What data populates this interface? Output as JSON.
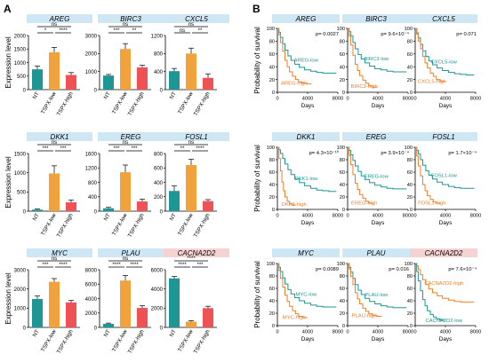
{
  "panels": {
    "A": {
      "letter": "A"
    },
    "B": {
      "letter": "B"
    }
  },
  "colors": {
    "nt": "#1e9696",
    "tspx_low": "#f2a23a",
    "tspx_high": "#ef5254",
    "title_bg": "#cfe7f5",
    "title_bg_alt": "#f6d3d3",
    "km_low": "#1e9696",
    "km_high": "#ef7f26"
  },
  "chart_data": [
    {
      "type": "bar",
      "title": "AREG",
      "ylabel": "Expression level",
      "categories": [
        "NT",
        "TSPX-low",
        "TSPX-high"
      ],
      "values": [
        750,
        1380,
        540
      ],
      "errors": [
        120,
        180,
        90
      ],
      "ylim": [
        0,
        2000
      ],
      "yticks": [
        0,
        500,
        1000,
        1500,
        2000
      ],
      "sig": [
        "*",
        "****",
        "ns"
      ]
    },
    {
      "type": "bar",
      "title": "BIRC3",
      "ylabel": "",
      "categories": [
        "NT",
        "TSPX-low",
        "TSPX-high"
      ],
      "values": [
        780,
        2250,
        1230
      ],
      "errors": [
        60,
        300,
        120
      ],
      "ylim": [
        0,
        3000
      ],
      "yticks": [
        0,
        1000,
        2000,
        3000
      ],
      "sig": [
        "***",
        "**",
        "ns"
      ]
    },
    {
      "type": "bar",
      "title": "CXCL5",
      "ylabel": "",
      "categories": [
        "NT",
        "TSPX-low",
        "TSPX-high"
      ],
      "values": [
        410,
        800,
        260
      ],
      "errors": [
        60,
        120,
        90
      ],
      "ylim": [
        0,
        1200
      ],
      "yticks": [
        0,
        400,
        800,
        1200
      ],
      "sig": [
        "ns",
        "**",
        "ns"
      ]
    },
    {
      "type": "bar",
      "title": "DKK1",
      "ylabel": "Expression level",
      "categories": [
        "NT",
        "TSPX-low",
        "TSPX-high"
      ],
      "values": [
        40,
        980,
        230
      ],
      "errors": [
        15,
        200,
        60
      ],
      "ylim": [
        0,
        1500
      ],
      "yticks": [
        0,
        500,
        1000,
        1500
      ],
      "sig": [
        "***",
        "***",
        "ns"
      ]
    },
    {
      "type": "bar",
      "title": "EREG",
      "ylabel": "",
      "categories": [
        "NT",
        "TSPX-low",
        "TSPX-high"
      ],
      "values": [
        80,
        1080,
        270
      ],
      "errors": [
        25,
        200,
        60
      ],
      "ylim": [
        0,
        1600
      ],
      "yticks": [
        0,
        400,
        800,
        1200,
        1600
      ],
      "sig": [
        "***",
        "***",
        "ns"
      ]
    },
    {
      "type": "bar",
      "title": "FOSL1",
      "ylabel": "",
      "categories": [
        "NT",
        "TSPX-low",
        "TSPX-high"
      ],
      "values": [
        280,
        640,
        140
      ],
      "errors": [
        70,
        80,
        20
      ],
      "ylim": [
        0,
        800
      ],
      "yticks": [
        0,
        200,
        400,
        600,
        800
      ],
      "sig": [
        "**",
        "****",
        "ns"
      ]
    },
    {
      "type": "bar",
      "title": "MYC",
      "ylabel": "Expression level",
      "categories": [
        "NT",
        "TSPX-low",
        "TSPX-high"
      ],
      "values": [
        1480,
        2370,
        1300
      ],
      "errors": [
        150,
        170,
        100
      ],
      "ylim": [
        0,
        3000
      ],
      "yticks": [
        0,
        1000,
        2000,
        3000
      ],
      "sig": [
        "***",
        "****",
        "ns"
      ]
    },
    {
      "type": "bar",
      "title": "PLAU",
      "ylabel": "",
      "categories": [
        "NT",
        "TSPX-low",
        "TSPX-high"
      ],
      "values": [
        500,
        6500,
        2700
      ],
      "errors": [
        100,
        700,
        300
      ],
      "ylim": [
        0,
        8000
      ],
      "yticks": [
        0,
        2000,
        4000,
        6000,
        8000
      ],
      "sig": [
        "****",
        "****",
        "ns"
      ]
    },
    {
      "type": "bar",
      "title": "CACNA2D2",
      "ylabel": "",
      "categories": [
        "NT",
        "TSPX-low",
        "TSPX-high"
      ],
      "values": [
        5100,
        600,
        2000
      ],
      "errors": [
        200,
        100,
        200
      ],
      "ylim": [
        0,
        6000
      ],
      "yticks": [
        0,
        2000,
        4000,
        6000
      ],
      "sig": [
        "****",
        "***",
        "****"
      ]
    },
    {
      "type": "line",
      "title": "AREG",
      "ylabel": "Probability of survival",
      "xlabel": "Days",
      "xlim": [
        0,
        8000
      ],
      "ylim": [
        0,
        100
      ],
      "xticks": [
        0,
        4000,
        8000
      ],
      "yticks": [
        0,
        20,
        40,
        60,
        80,
        100
      ],
      "pvalue": "p= 0.0027",
      "series": [
        {
          "name": "AREG-low",
          "x": [
            0,
            200,
            400,
            700,
            1000,
            1400,
            1800,
            2300,
            2900,
            3600,
            4400,
            5200,
            6000,
            6800,
            7800
          ],
          "y": [
            100,
            94,
            86,
            76,
            66,
            57,
            50,
            44,
            39,
            35,
            33,
            31,
            30,
            30,
            30
          ]
        },
        {
          "name": "AREG-high",
          "x": [
            0,
            200,
            400,
            700,
            1000,
            1300,
            1600,
            2000,
            2400,
            2800,
            3300,
            3900,
            4500
          ],
          "y": [
            100,
            90,
            78,
            64,
            50,
            40,
            32,
            25,
            20,
            16,
            14,
            13,
            13
          ]
        }
      ]
    },
    {
      "type": "line",
      "title": "BIRC3",
      "ylabel": "",
      "xlabel": "Days",
      "xlim": [
        0,
        8000
      ],
      "ylim": [
        0,
        100
      ],
      "xticks": [
        0,
        4000,
        8000
      ],
      "yticks": [
        0,
        20,
        40,
        60,
        80,
        100
      ],
      "pvalue": "p= 9.6×10⁻⁴",
      "series": [
        {
          "name": "BIRC3-low",
          "x": [
            0,
            200,
            400,
            700,
            1000,
            1400,
            1800,
            2300,
            2900,
            3600,
            4400,
            5200,
            6000,
            6800,
            7800
          ],
          "y": [
            100,
            95,
            88,
            78,
            68,
            59,
            52,
            46,
            41,
            37,
            35,
            33,
            32,
            32,
            32
          ]
        },
        {
          "name": "BIRC3-high",
          "x": [
            0,
            200,
            400,
            700,
            1000,
            1300,
            1600,
            2000,
            2400,
            2800,
            3300,
            3900
          ],
          "y": [
            100,
            88,
            74,
            58,
            44,
            34,
            26,
            19,
            14,
            10,
            8,
            8
          ]
        }
      ]
    },
    {
      "type": "line",
      "title": "CXCL5",
      "ylabel": "",
      "xlabel": "Days",
      "xlim": [
        0,
        8000
      ],
      "ylim": [
        0,
        100
      ],
      "xticks": [
        0,
        4000,
        8000
      ],
      "yticks": [
        0,
        20,
        40,
        60,
        80,
        100
      ],
      "pvalue": "p= 0.071",
      "series": [
        {
          "name": "CXCL5-low",
          "x": [
            0,
            200,
            400,
            700,
            1000,
            1400,
            1800,
            2300,
            2900,
            3600,
            4400,
            5200,
            6000,
            6800,
            7800
          ],
          "y": [
            100,
            93,
            85,
            75,
            65,
            56,
            49,
            43,
            38,
            34,
            31,
            29,
            28,
            27,
            27
          ]
        },
        {
          "name": "CXCL5-high",
          "x": [
            0,
            200,
            400,
            700,
            1000,
            1300,
            1600,
            2000,
            2400,
            2800,
            3300,
            3900
          ],
          "y": [
            100,
            91,
            80,
            68,
            56,
            46,
            38,
            30,
            25,
            20,
            17,
            16
          ]
        }
      ]
    },
    {
      "type": "line",
      "title": "DKK1",
      "ylabel": "Probability of survival",
      "xlabel": "Days",
      "xlim": [
        0,
        8000
      ],
      "ylim": [
        0,
        100
      ],
      "xticks": [
        0,
        4000,
        8000
      ],
      "yticks": [
        0,
        20,
        40,
        60,
        80,
        100
      ],
      "pvalue": "p= 4.3×10⁻¹⁰",
      "series": [
        {
          "name": "DKK1-low",
          "x": [
            0,
            200,
            400,
            700,
            1000,
            1400,
            1800,
            2300,
            2900,
            3600,
            4400,
            5200,
            6000,
            6800,
            7800
          ],
          "y": [
            100,
            96,
            90,
            82,
            73,
            64,
            56,
            49,
            43,
            38,
            34,
            31,
            30,
            29,
            29
          ]
        },
        {
          "name": "DKK1-high",
          "x": [
            0,
            200,
            400,
            600,
            800,
            1000,
            1300,
            1600,
            2000,
            2400
          ],
          "y": [
            100,
            82,
            62,
            44,
            30,
            20,
            13,
            9,
            7,
            7
          ]
        }
      ]
    },
    {
      "type": "line",
      "title": "EREG",
      "ylabel": "",
      "xlabel": "Days",
      "xlim": [
        0,
        8000
      ],
      "ylim": [
        0,
        100
      ],
      "xticks": [
        0,
        4000,
        8000
      ],
      "yticks": [
        0,
        20,
        40,
        60,
        80,
        100
      ],
      "pvalue": "p= 3.9×10⁻⁴",
      "series": [
        {
          "name": "EREG-low",
          "x": [
            0,
            200,
            400,
            700,
            1000,
            1400,
            1800,
            2300,
            2900,
            3600,
            4400,
            5200,
            6000,
            6800,
            7800
          ],
          "y": [
            100,
            95,
            88,
            79,
            70,
            61,
            54,
            48,
            43,
            39,
            36,
            34,
            33,
            33,
            33
          ]
        },
        {
          "name": "EREG-high",
          "x": [
            0,
            200,
            400,
            700,
            1000,
            1300,
            1600,
            2000,
            2400,
            2800,
            3300
          ],
          "y": [
            100,
            87,
            72,
            56,
            42,
            32,
            24,
            18,
            13,
            10,
            9
          ]
        }
      ]
    },
    {
      "type": "line",
      "title": "FOSL1",
      "ylabel": "",
      "xlabel": "Days",
      "xlim": [
        0,
        8000
      ],
      "ylim": [
        0,
        100
      ],
      "xticks": [
        0,
        4000,
        8000
      ],
      "yticks": [
        0,
        20,
        40,
        60,
        80,
        100
      ],
      "pvalue": "p= 1.7×10⁻⁴",
      "series": [
        {
          "name": "FOSL1-low",
          "x": [
            0,
            200,
            400,
            700,
            1000,
            1400,
            1800,
            2300,
            2900,
            3600,
            4400,
            5200,
            6000,
            6800,
            7800
          ],
          "y": [
            100,
            95,
            89,
            80,
            71,
            62,
            55,
            49,
            44,
            40,
            37,
            35,
            34,
            34,
            34
          ]
        },
        {
          "name": "FOSL1-high",
          "x": [
            0,
            200,
            400,
            700,
            1000,
            1300,
            1600,
            2000,
            2400,
            2800,
            3300
          ],
          "y": [
            100,
            86,
            70,
            54,
            40,
            30,
            22,
            16,
            12,
            10,
            9
          ]
        }
      ]
    },
    {
      "type": "line",
      "title": "MYC",
      "ylabel": "Probability of survival",
      "xlabel": "Days",
      "xlim": [
        0,
        8000
      ],
      "ylim": [
        0,
        100
      ],
      "xticks": [
        0,
        4000,
        8000
      ],
      "yticks": [
        0,
        20,
        40,
        60,
        80,
        100
      ],
      "pvalue": "p= 0.0089",
      "series": [
        {
          "name": "MYC-low",
          "x": [
            0,
            200,
            400,
            700,
            1000,
            1400,
            1800,
            2300,
            2900,
            3600,
            4400,
            5200,
            6000,
            6800,
            7800
          ],
          "y": [
            100,
            94,
            87,
            77,
            67,
            58,
            51,
            45,
            40,
            36,
            33,
            31,
            30,
            30,
            30
          ]
        },
        {
          "name": "MYC-high",
          "x": [
            0,
            200,
            400,
            700,
            1000,
            1300,
            1600,
            2000,
            2400,
            2800,
            3300,
            3900
          ],
          "y": [
            100,
            89,
            76,
            62,
            49,
            39,
            31,
            24,
            19,
            15,
            13,
            12
          ]
        }
      ]
    },
    {
      "type": "line",
      "title": "PLAU",
      "ylabel": "",
      "xlabel": "Days",
      "xlim": [
        0,
        8000
      ],
      "ylim": [
        0,
        100
      ],
      "xticks": [
        0,
        4000,
        8000
      ],
      "yticks": [
        0,
        20,
        40,
        60,
        80,
        100
      ],
      "pvalue": "p= 0.016",
      "series": [
        {
          "name": "PLAU-low",
          "x": [
            0,
            200,
            400,
            700,
            1000,
            1400,
            1800,
            2300,
            2900,
            3600,
            4400,
            5200,
            6000,
            6800,
            7800
          ],
          "y": [
            100,
            94,
            86,
            76,
            66,
            57,
            50,
            44,
            39,
            35,
            32,
            30,
            29,
            29,
            29
          ]
        },
        {
          "name": "PLAU-high",
          "x": [
            0,
            200,
            400,
            700,
            1000,
            1300,
            1600,
            2000,
            2400,
            2800,
            3300,
            3900,
            4500
          ],
          "y": [
            100,
            91,
            79,
            66,
            53,
            43,
            35,
            28,
            23,
            19,
            16,
            15,
            15
          ]
        }
      ]
    },
    {
      "type": "line",
      "title": "CACNA2D2",
      "ylabel": "",
      "xlabel": "Days",
      "xlim": [
        0,
        8000
      ],
      "ylim": [
        0,
        100
      ],
      "xticks": [
        0,
        4000,
        8000
      ],
      "yticks": [
        0,
        20,
        40,
        60,
        80,
        100
      ],
      "pvalue": "p= 7.6×10⁻⁴",
      "series": [
        {
          "name": "CACNA2D2-high",
          "x": [
            0,
            200,
            400,
            700,
            1000,
            1400,
            1800,
            2300,
            2900,
            3600,
            4400,
            5200,
            6000,
            6800,
            7800
          ],
          "y": [
            100,
            96,
            90,
            82,
            74,
            66,
            59,
            53,
            48,
            44,
            41,
            39,
            38,
            38,
            38
          ]
        },
        {
          "name": "CACNA2D2-low",
          "x": [
            0,
            200,
            400,
            700,
            1000,
            1300,
            1600,
            2000,
            2400,
            2800,
            3300,
            3900
          ],
          "y": [
            100,
            87,
            72,
            56,
            42,
            32,
            24,
            18,
            14,
            11,
            9,
            9
          ]
        }
      ]
    }
  ]
}
